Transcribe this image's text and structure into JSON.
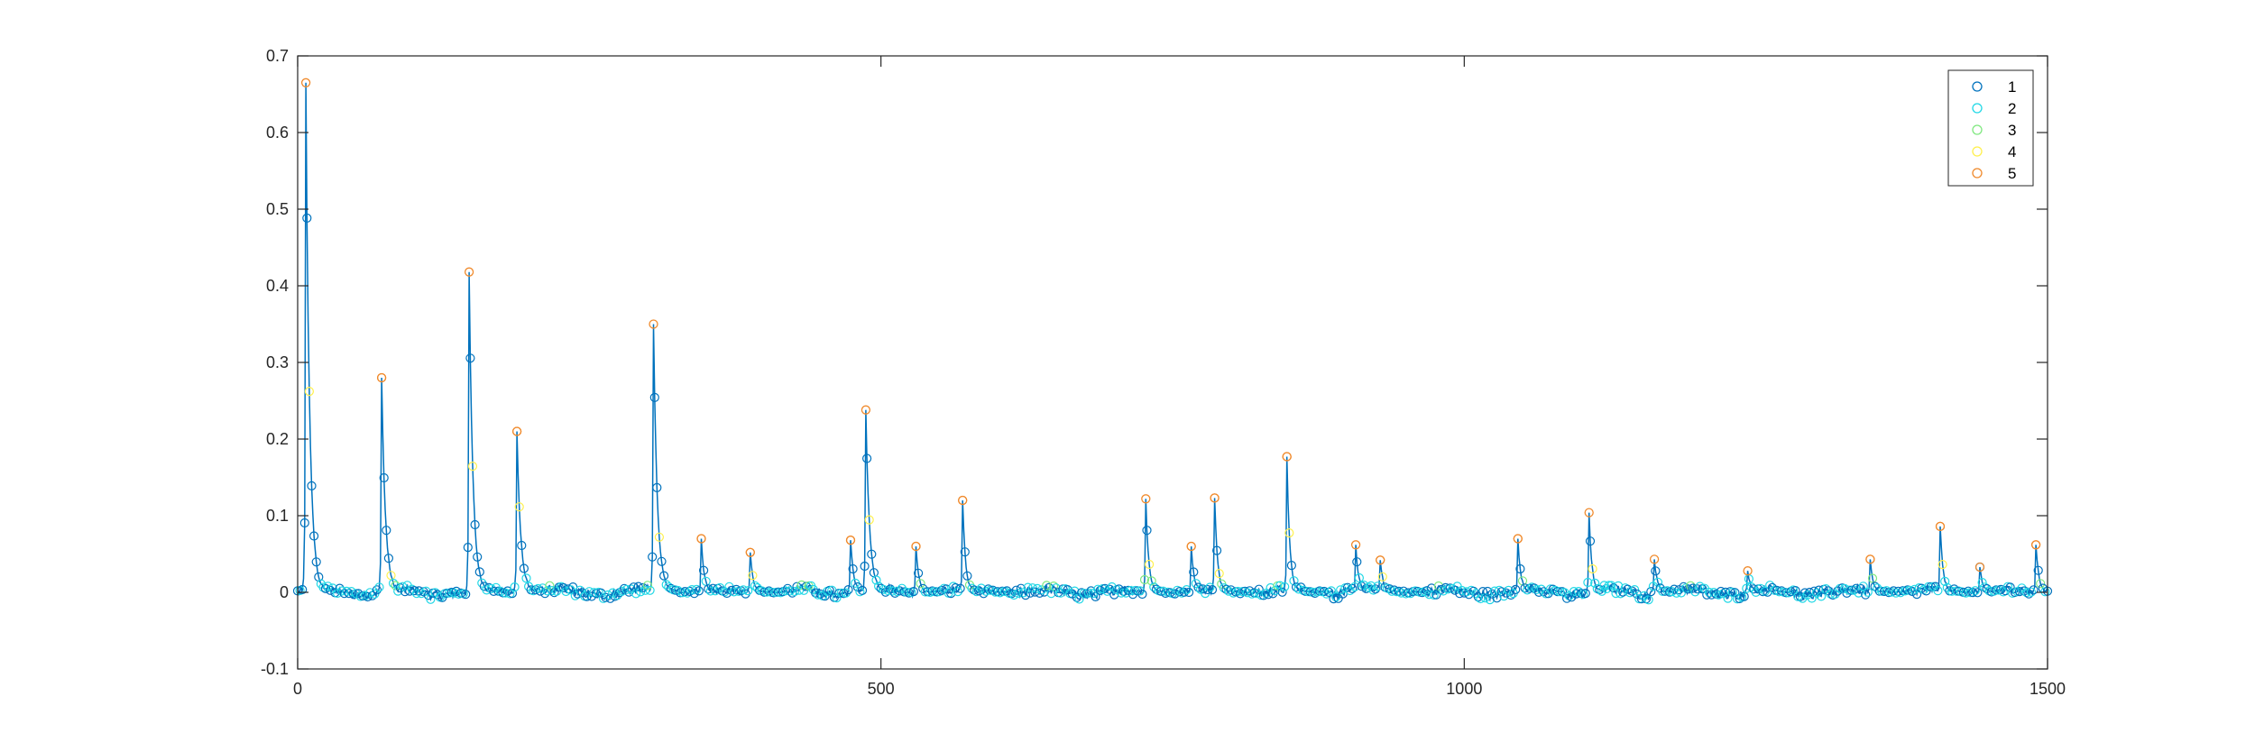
{
  "chart_data": {
    "type": "scatter",
    "title": "",
    "xlabel": "",
    "ylabel": "",
    "xlim": [
      0,
      1500
    ],
    "ylim": [
      -0.1,
      0.7
    ],
    "xticks": [
      0,
      500,
      1000,
      1500
    ],
    "yticks": [
      -0.1,
      0,
      0.1,
      0.2,
      0.3,
      0.4,
      0.5,
      0.6,
      0.7
    ],
    "grid": false,
    "legend_position": "top-right",
    "line_color": "#0072BD",
    "peaks": [
      [
        7,
        0.665
      ],
      [
        72,
        0.28
      ],
      [
        147,
        0.418
      ],
      [
        188,
        0.21
      ],
      [
        305,
        0.35
      ],
      [
        346,
        0.07
      ],
      [
        388,
        0.052
      ],
      [
        474,
        0.068
      ],
      [
        487,
        0.238
      ],
      [
        530,
        0.06
      ],
      [
        570,
        0.12
      ],
      [
        727,
        0.122
      ],
      [
        766,
        0.06
      ],
      [
        786,
        0.123
      ],
      [
        848,
        0.177
      ],
      [
        907,
        0.062
      ],
      [
        928,
        0.042
      ],
      [
        1046,
        0.07
      ],
      [
        1107,
        0.104
      ],
      [
        1163,
        0.043
      ],
      [
        1243,
        0.028
      ],
      [
        1348,
        0.043
      ],
      [
        1408,
        0.086
      ],
      [
        1442,
        0.033
      ],
      [
        1490,
        0.062
      ]
    ],
    "series": [
      {
        "name": "1",
        "color": "#0072BD"
      },
      {
        "name": "2",
        "color": "#21D8E6"
      },
      {
        "name": "3",
        "color": "#7FE87F"
      },
      {
        "name": "4",
        "color": "#FFF04D"
      },
      {
        "name": "5",
        "color": "#F08A2C"
      }
    ]
  }
}
